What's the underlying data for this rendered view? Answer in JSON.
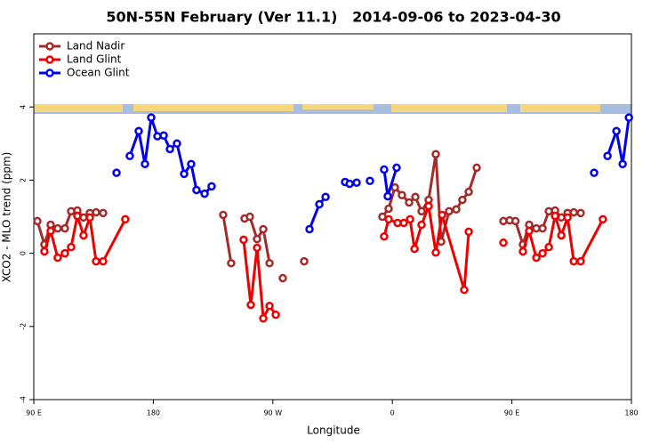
{
  "chart_data": {
    "type": "line",
    "title": "50N-55N February (Ver 11.1)   2014-09-06 to 2023-04-30",
    "xlabel": "Longitude",
    "ylabel": "XCO2 - MLO trend (ppm)",
    "xlim": [
      90,
      540
    ],
    "ylim": [
      -4,
      6
    ],
    "xticks": [
      {
        "value": 90,
        "label": "90 E"
      },
      180,
      {
        "value": 270,
        "label": "90 W"
      },
      {
        "value": 360,
        "label": "0"
      },
      {
        "value": 450,
        "label": "90 E"
      },
      {
        "value": 540,
        "label": "180"
      }
    ],
    "yticks": [
      -4,
      -2,
      0,
      2,
      4
    ],
    "legend": "upper left",
    "series": [
      {
        "name": "Land Nadir",
        "color": "#a52a2a",
        "x": [
          92.7,
          98,
          102.7,
          108,
          113.4,
          118.1,
          122.8,
          127.5,
          132.2,
          136.9,
          142.2,
          null,
          232.6,
          238.6,
          null,
          248.7,
          252.7,
          258.1,
          262.8,
          267.5,
          null,
          277.5,
          null,
          293.6,
          null,
          352.5,
          357.2,
          361.9,
          367.2,
          372.6,
          377.3,
          382,
          387.3,
          392.7,
          396.7,
          402.7,
          408.1,
          412.7,
          417.5,
          423.5,
          null,
          443.6,
          448.3,
          452.7,
          458.3,
          463,
          468.4,
          473.1,
          477.8,
          482.5,
          487.2,
          491.9,
          496.6,
          501.8
        ],
        "values": [
          0.88,
          0.24,
          0.78,
          0.68,
          0.68,
          1.15,
          1.17,
          0.98,
          1.1,
          1.12,
          1.1,
          null,
          1.05,
          -0.27,
          null,
          0.95,
          1.0,
          0.39,
          0.66,
          -0.27,
          null,
          -0.68,
          null,
          -0.22,
          null,
          1.0,
          1.22,
          1.8,
          1.59,
          1.39,
          1.54,
          1.15,
          1.46,
          2.71,
          0.32,
          1.15,
          1.2,
          1.46,
          1.68,
          2.34,
          null,
          0.88,
          0.9,
          0.88,
          0.24,
          0.78,
          0.68,
          0.68,
          1.15,
          1.17,
          0.98,
          1.1,
          1.12,
          1.1
        ]
      },
      {
        "name": "Land Glint",
        "color": "#ee0000",
        "x": [
          98,
          102.7,
          108,
          113.4,
          118.1,
          122.8,
          127.5,
          132.2,
          136.9,
          142.2,
          158.9,
          null,
          248,
          253.4,
          258.1,
          262.8,
          267.5,
          272.2,
          null,
          353.8,
          357.2,
          363.9,
          368.6,
          373.3,
          376.7,
          382,
          387.3,
          392.7,
          397.4,
          414.1,
          417.5,
          null,
          443.6,
          null,
          458.3,
          463,
          468.4,
          473.1,
          477.8,
          482.5,
          487.2,
          491.9,
          496.6,
          501.8,
          518.5
        ],
        "values": [
          0.05,
          0.61,
          -0.12,
          0,
          0.17,
          1.02,
          0.49,
          0.98,
          -0.22,
          -0.22,
          0.93,
          null,
          0.37,
          -1.41,
          0.15,
          -1.78,
          -1.44,
          -1.68,
          null,
          0.46,
          0.93,
          0.83,
          0.83,
          0.93,
          0.12,
          0.78,
          1.29,
          0.02,
          1.05,
          -1.0,
          0.59,
          null,
          0.29,
          null,
          0.05,
          0.61,
          -0.12,
          0,
          0.17,
          1.02,
          0.49,
          0.98,
          -0.22,
          -0.22,
          0.93
        ]
      },
      {
        "name": "Ocean Glint",
        "color": "#0000ee",
        "x": [
          152.3,
          null,
          162.3,
          169,
          173.7,
          178.4,
          183.1,
          187.8,
          192.5,
          197.8,
          203.2,
          208.5,
          212.5,
          218.6,
          223.9,
          null,
          297.6,
          305,
          309.7,
          null,
          324.4,
          327.8,
          333.1,
          null,
          343.1,
          null,
          353.8,
          356.5,
          363.2,
          null,
          511.9,
          null,
          522,
          528.7,
          533.4,
          538.1
        ],
        "values": [
          2.2,
          null,
          2.66,
          3.34,
          2.44,
          3.71,
          3.2,
          3.22,
          2.85,
          3.0,
          2.17,
          2.44,
          1.73,
          1.63,
          1.83,
          null,
          0.66,
          1.34,
          1.54,
          null,
          1.95,
          1.9,
          1.93,
          null,
          1.98,
          null,
          2.29,
          1.56,
          2.34,
          null,
          2.2,
          null,
          2.66,
          3.34,
          2.44,
          3.71
        ]
      }
    ]
  }
}
